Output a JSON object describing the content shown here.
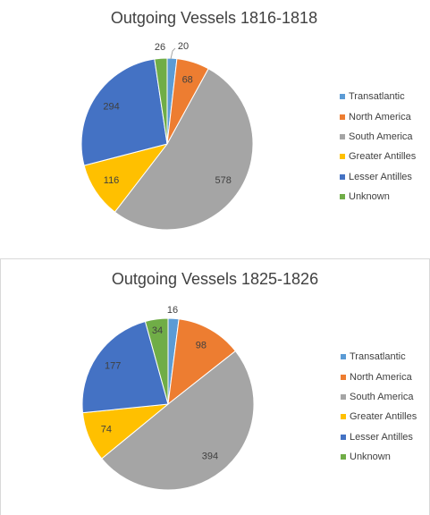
{
  "chart_data": [
    {
      "type": "pie",
      "title": "Outgoing Vessels 1816-1818",
      "categories": [
        "Transatlantic",
        "North America",
        "South America",
        "Greater Antilles",
        "Lesser Antilles",
        "Unknown"
      ],
      "values": [
        20,
        68,
        578,
        116,
        294,
        26
      ],
      "legend_position": "right"
    },
    {
      "type": "pie",
      "title": "Outgoing Vessels 1825-1826",
      "categories": [
        "Transatlantic",
        "North America",
        "South America",
        "Greater Antilles",
        "Lesser Antilles",
        "Unknown"
      ],
      "values": [
        16,
        98,
        394,
        74,
        177,
        34
      ],
      "legend_position": "right"
    }
  ],
  "colors": [
    "#5b9bd5",
    "#ed7d31",
    "#a5a5a5",
    "#ffc000",
    "#4472c4",
    "#70ad47"
  ]
}
